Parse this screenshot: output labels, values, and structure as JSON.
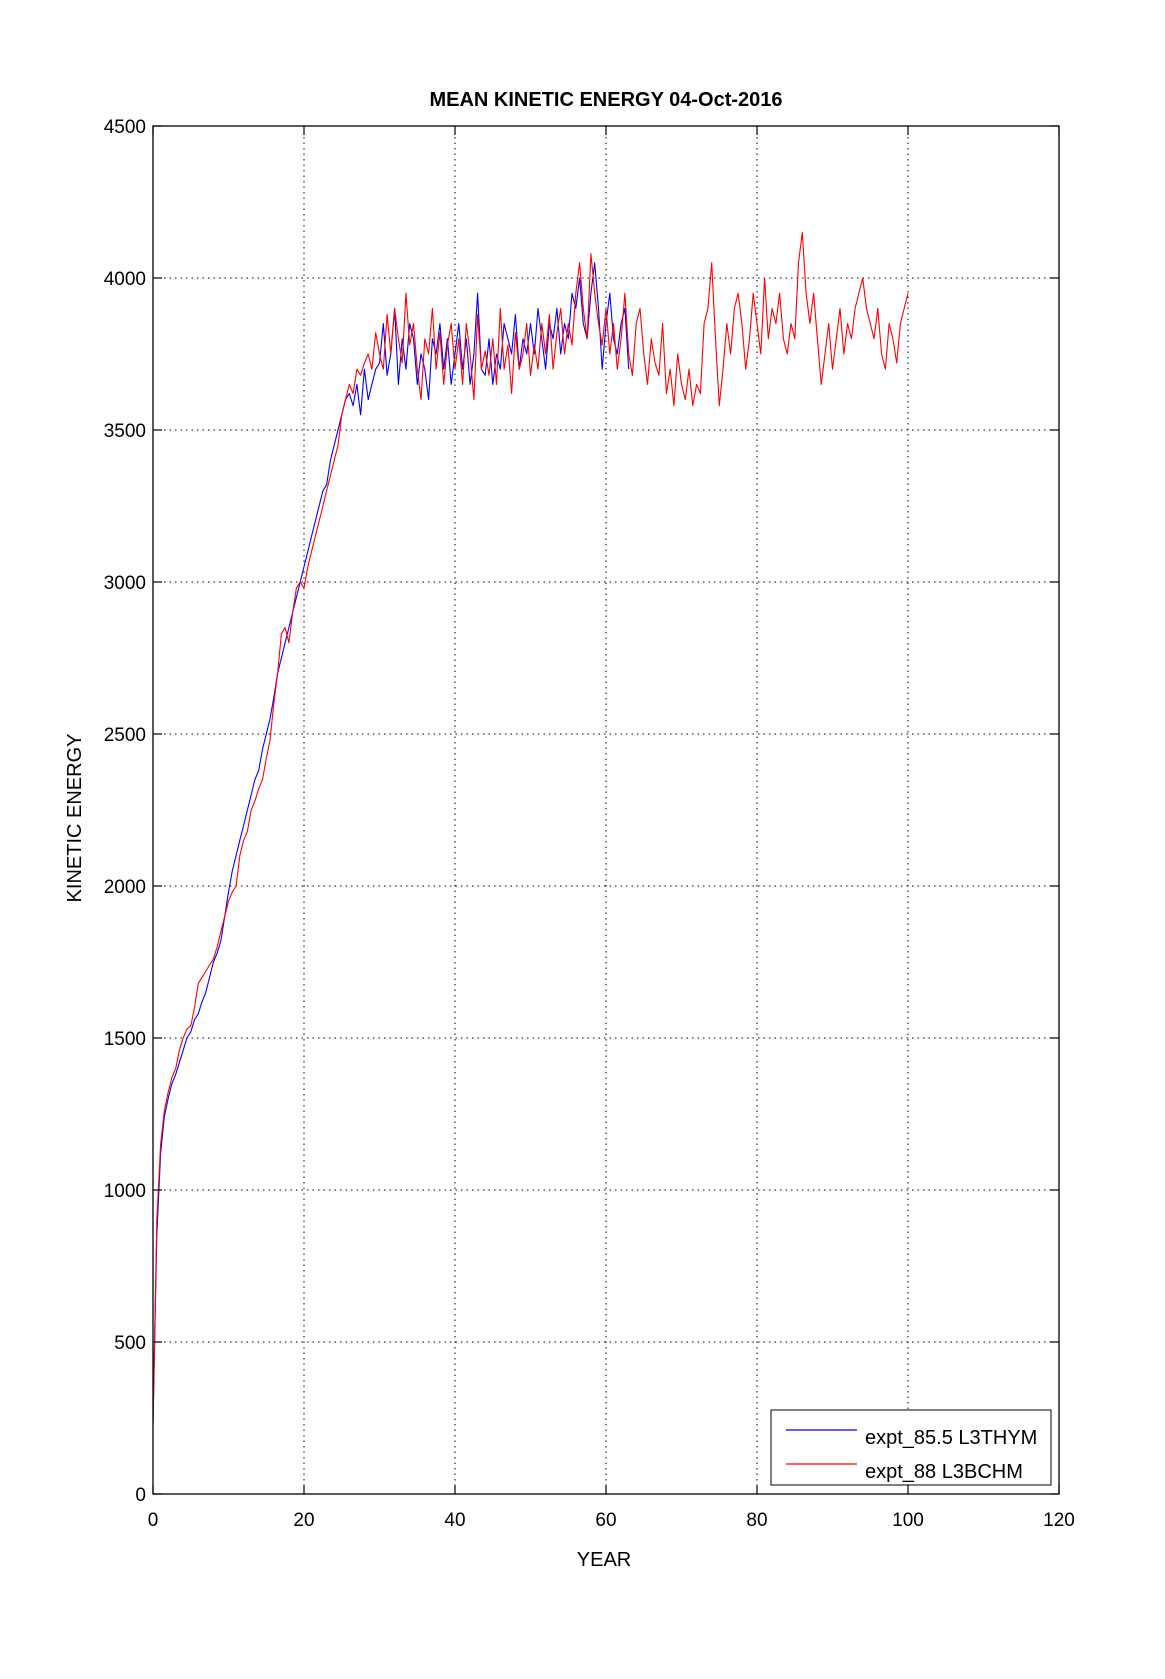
{
  "chart_data": {
    "type": "line",
    "title": "MEAN KINETIC ENERGY 04-Oct-2016",
    "xlabel": "YEAR",
    "ylabel": "KINETIC ENERGY",
    "xlim": [
      0,
      120
    ],
    "ylim": [
      0,
      4500
    ],
    "xticks": [
      "0",
      "20",
      "40",
      "60",
      "80",
      "100",
      "120"
    ],
    "yticks": [
      "0",
      "500",
      "1000",
      "1500",
      "2000",
      "2500",
      "3000",
      "3500",
      "4000",
      "4500"
    ],
    "grid": true,
    "legend_position": "bottom-right",
    "series": [
      {
        "name": "expt_85.5 L3THYM",
        "color": "#0000ff",
        "x_start": 0,
        "x_step": 0.5,
        "values": [
          230,
          850,
          1120,
          1240,
          1300,
          1350,
          1380,
          1420,
          1460,
          1500,
          1520,
          1560,
          1580,
          1620,
          1650,
          1700,
          1750,
          1780,
          1820,
          1900,
          1980,
          2050,
          2100,
          2150,
          2200,
          2250,
          2300,
          2350,
          2380,
          2450,
          2500,
          2550,
          2620,
          2700,
          2750,
          2800,
          2850,
          2900,
          2950,
          3000,
          3050,
          3100,
          3150,
          3200,
          3250,
          3300,
          3320,
          3400,
          3450,
          3500,
          3550,
          3600,
          3620,
          3580,
          3650,
          3550,
          3700,
          3600,
          3650,
          3700,
          3720,
          3850,
          3680,
          3750,
          3900,
          3650,
          3800,
          3700,
          3850,
          3800,
          3650,
          3750,
          3700,
          3600,
          3800,
          3750,
          3850,
          3700,
          3800,
          3650,
          3750,
          3850,
          3700,
          3800,
          3650,
          3750,
          3950,
          3700,
          3680,
          3800,
          3650,
          3750,
          3700,
          3850,
          3800,
          3750,
          3880,
          3700,
          3800,
          3750,
          3850,
          3750,
          3900,
          3800,
          3700,
          3850,
          3800,
          3900,
          3750,
          3850,
          3800,
          3950,
          3900,
          4000,
          3850,
          3800,
          3950,
          4050,
          3900,
          3700,
          3850,
          3950,
          3800,
          3750,
          3850,
          3900,
          3700
        ]
      },
      {
        "name": "expt_88 L3BCHM",
        "color": "#ff0000",
        "x_start": 0,
        "x_step": 0.5,
        "values": [
          230,
          900,
          1150,
          1260,
          1320,
          1370,
          1400,
          1460,
          1500,
          1530,
          1540,
          1600,
          1680,
          1700,
          1720,
          1740,
          1760,
          1800,
          1850,
          1900,
          1950,
          1980,
          2000,
          2100,
          2150,
          2180,
          2250,
          2280,
          2320,
          2350,
          2420,
          2480,
          2600,
          2700,
          2830,
          2850,
          2800,
          2900,
          2980,
          3000,
          2980,
          3050,
          3100,
          3150,
          3200,
          3250,
          3300,
          3350,
          3400,
          3450,
          3550,
          3600,
          3650,
          3620,
          3700,
          3680,
          3720,
          3750,
          3700,
          3820,
          3750,
          3700,
          3880,
          3750,
          3900,
          3800,
          3720,
          3950,
          3780,
          3850,
          3700,
          3600,
          3800,
          3750,
          3900,
          3700,
          3820,
          3650,
          3780,
          3850,
          3700,
          3800,
          3650,
          3850,
          3750,
          3600,
          3880,
          3700,
          3760,
          3680,
          3800,
          3650,
          3900,
          3700,
          3780,
          3620,
          3820,
          3700,
          3750,
          3850,
          3680,
          3780,
          3700,
          3850,
          3750,
          3880,
          3700,
          3820,
          3900,
          3750,
          3850,
          3780,
          3950,
          4050,
          3900,
          3800,
          4080,
          3950,
          3850,
          3780,
          3900,
          3750,
          3850,
          3700,
          3800,
          3950,
          3750,
          3680,
          3850,
          3900,
          3750,
          3650,
          3800,
          3720,
          3680,
          3850,
          3620,
          3700,
          3580,
          3750,
          3650,
          3600,
          3700,
          3580,
          3650,
          3620,
          3850,
          3900,
          4050,
          3800,
          3580,
          3700,
          3850,
          3750,
          3900,
          3950,
          3850,
          3700,
          3800,
          3950,
          3850,
          3750,
          4000,
          3800,
          3900,
          3850,
          3950,
          3800,
          3750,
          3850,
          3800,
          4050,
          4150,
          3950,
          3850,
          3950,
          3800,
          3650,
          3750,
          3850,
          3700,
          3800,
          3900,
          3750,
          3850,
          3800,
          3900,
          3950,
          4000,
          3900,
          3850,
          3800,
          3900,
          3750,
          3700,
          3850,
          3800,
          3720,
          3850,
          3900,
          3950
        ]
      }
    ]
  }
}
